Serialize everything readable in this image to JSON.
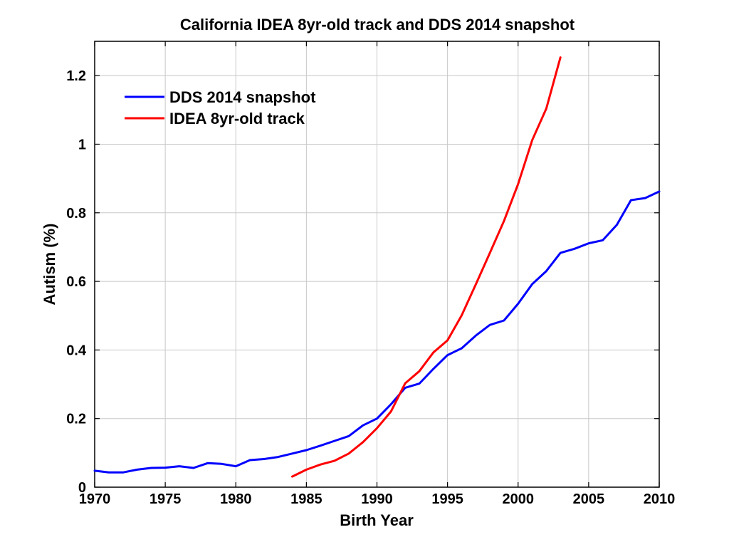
{
  "chart_data": {
    "type": "line",
    "title": "California IDEA 8yr-old track and DDS 2014 snapshot",
    "xlabel": "Birth Year",
    "ylabel": "Autism (%)",
    "xlim": [
      1970,
      2010
    ],
    "ylim": [
      0,
      1.3
    ],
    "xticks": [
      1970,
      1975,
      1980,
      1985,
      1990,
      1995,
      2000,
      2005,
      2010
    ],
    "xtick_labels": [
      "1970",
      "1975",
      "1980",
      "1985",
      "1990",
      "1995",
      "2000",
      "2005",
      "2010"
    ],
    "yticks": [
      0,
      0.2,
      0.4,
      0.6,
      0.8,
      1.0,
      1.2
    ],
    "ytick_labels": [
      "0",
      "0.2",
      "0.4",
      "0.6",
      "0.8",
      "1",
      "1.2"
    ],
    "grid": true,
    "legend_position": "top-left",
    "series": [
      {
        "name": "DDS 2014 snapshot",
        "color": "#0000ff",
        "x": [
          1970,
          1971,
          1972,
          1973,
          1974,
          1975,
          1976,
          1977,
          1978,
          1979,
          1980,
          1981,
          1982,
          1983,
          1984,
          1985,
          1986,
          1987,
          1988,
          1989,
          1990,
          1991,
          1992,
          1993,
          1994,
          1995,
          1996,
          1997,
          1998,
          1999,
          2000,
          2001,
          2002,
          2003,
          2004,
          2005,
          2006,
          2007,
          2008,
          2009,
          2010
        ],
        "y": [
          0.048,
          0.043,
          0.043,
          0.051,
          0.056,
          0.057,
          0.061,
          0.056,
          0.07,
          0.068,
          0.061,
          0.079,
          0.082,
          0.088,
          0.098,
          0.108,
          0.121,
          0.135,
          0.149,
          0.18,
          0.2,
          0.242,
          0.29,
          0.302,
          0.345,
          0.385,
          0.405,
          0.442,
          0.473,
          0.486,
          0.535,
          0.592,
          0.63,
          0.683,
          0.695,
          0.711,
          0.72,
          0.765,
          0.837,
          0.843,
          0.862
        ]
      },
      {
        "name": "IDEA 8yr-old track",
        "color": "#ff0000",
        "x": [
          1984,
          1985,
          1986,
          1987,
          1988,
          1989,
          1990,
          1991,
          1992,
          1993,
          1994,
          1995,
          1996,
          1997,
          1998,
          1999,
          2000,
          2001,
          2002,
          2003
        ],
        "y": [
          0.031,
          0.051,
          0.066,
          0.077,
          0.098,
          0.131,
          0.172,
          0.221,
          0.303,
          0.338,
          0.393,
          0.428,
          0.501,
          0.591,
          0.683,
          0.776,
          0.884,
          1.012,
          1.104,
          1.253
        ]
      }
    ]
  }
}
